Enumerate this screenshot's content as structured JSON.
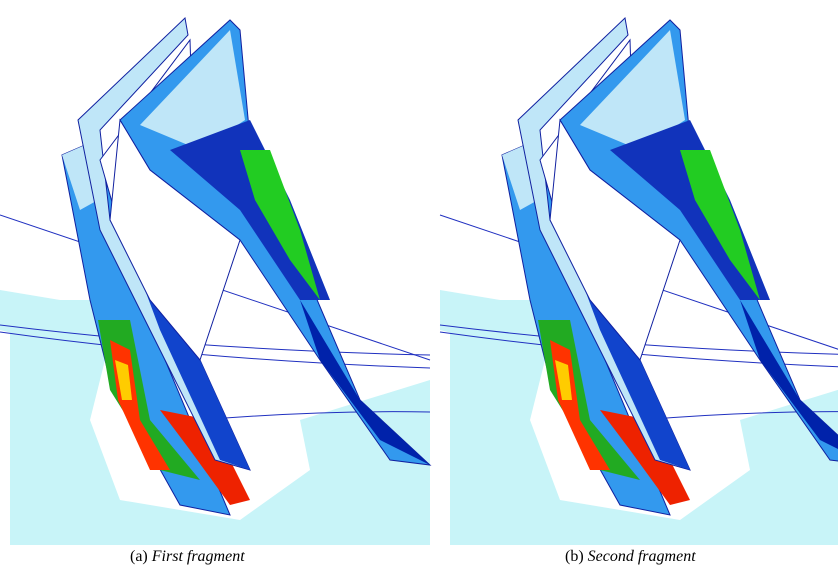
{
  "figures": [
    {
      "label": "(a)",
      "caption": "First fragment"
    },
    {
      "label": "(b)",
      "caption": "Second fragment"
    }
  ]
}
